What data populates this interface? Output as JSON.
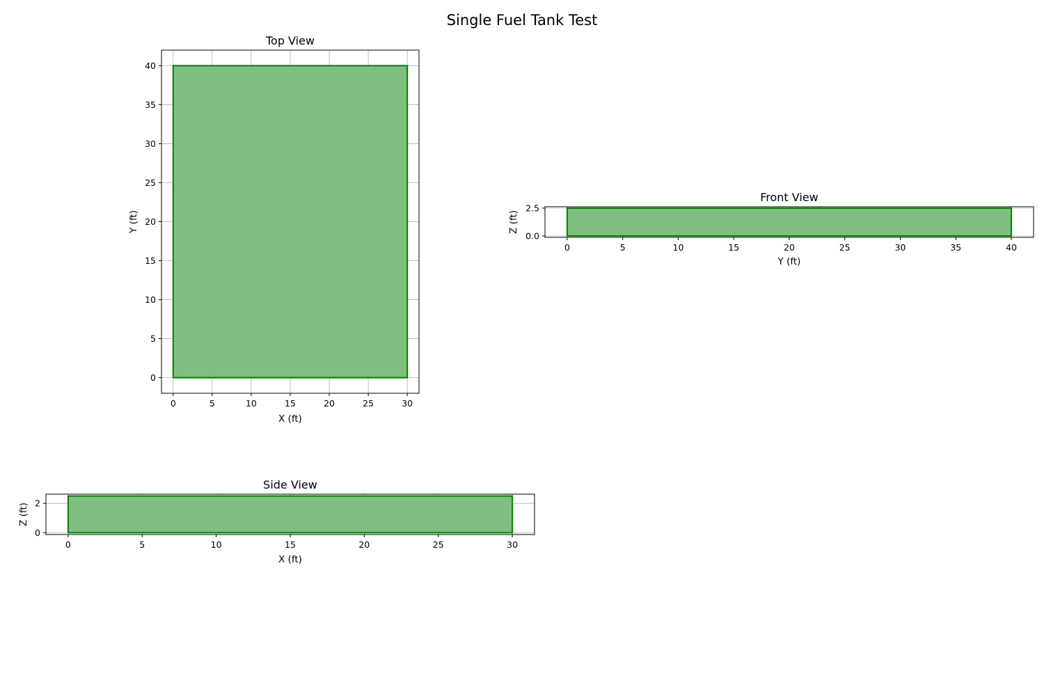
{
  "figure": {
    "title": "Single Fuel Tank Test"
  },
  "chart_data": [
    {
      "id": "top",
      "type": "area",
      "title": "Top View",
      "xlabel": "X (ft)",
      "ylabel": "Y (ft)",
      "xlim": [
        -1.5,
        31.5
      ],
      "ylim": [
        -2,
        42
      ],
      "xticks": [
        0,
        5,
        10,
        15,
        20,
        25,
        30
      ],
      "yticks": [
        0,
        5,
        10,
        15,
        20,
        25,
        30,
        35,
        40
      ],
      "ytick_labels": [
        "0",
        "5",
        "10",
        "15",
        "20",
        "25",
        "30",
        "35",
        "40"
      ],
      "grid": true,
      "series": [
        {
          "fill_color": "#7fbf7f",
          "edge_color": "#008000",
          "polygon": [
            [
              0,
              0
            ],
            [
              30,
              0
            ],
            [
              30,
              40
            ],
            [
              0,
              40
            ]
          ]
        }
      ]
    },
    {
      "id": "front",
      "type": "area",
      "title": "Front View",
      "xlabel": "Y (ft)",
      "ylabel": "Z (ft)",
      "xlim": [
        -2,
        42
      ],
      "ylim": [
        -0.125,
        2.625
      ],
      "xticks": [
        0,
        5,
        10,
        15,
        20,
        25,
        30,
        35,
        40
      ],
      "yticks": [
        0,
        2.5
      ],
      "ytick_labels": [
        "0.0",
        "2.5"
      ],
      "grid": true,
      "series": [
        {
          "fill_color": "#7fbf7f",
          "edge_color": "#008000",
          "polygon": [
            [
              0,
              0
            ],
            [
              40,
              0
            ],
            [
              40,
              2.5
            ],
            [
              0,
              2.5
            ]
          ]
        }
      ]
    },
    {
      "id": "side",
      "type": "area",
      "title": "Side View",
      "xlabel": "X (ft)",
      "ylabel": "Z (ft)",
      "xlim": [
        -1.5,
        31.5
      ],
      "ylim": [
        -0.125,
        2.625
      ],
      "xticks": [
        0,
        5,
        10,
        15,
        20,
        25,
        30
      ],
      "yticks": [
        0,
        2
      ],
      "ytick_labels": [
        "0",
        "2"
      ],
      "grid": true,
      "series": [
        {
          "fill_color": "#7fbf7f",
          "edge_color": "#008000",
          "polygon": [
            [
              0,
              0
            ],
            [
              30,
              0
            ],
            [
              30,
              2.5
            ],
            [
              0,
              2.5
            ]
          ]
        }
      ]
    }
  ]
}
